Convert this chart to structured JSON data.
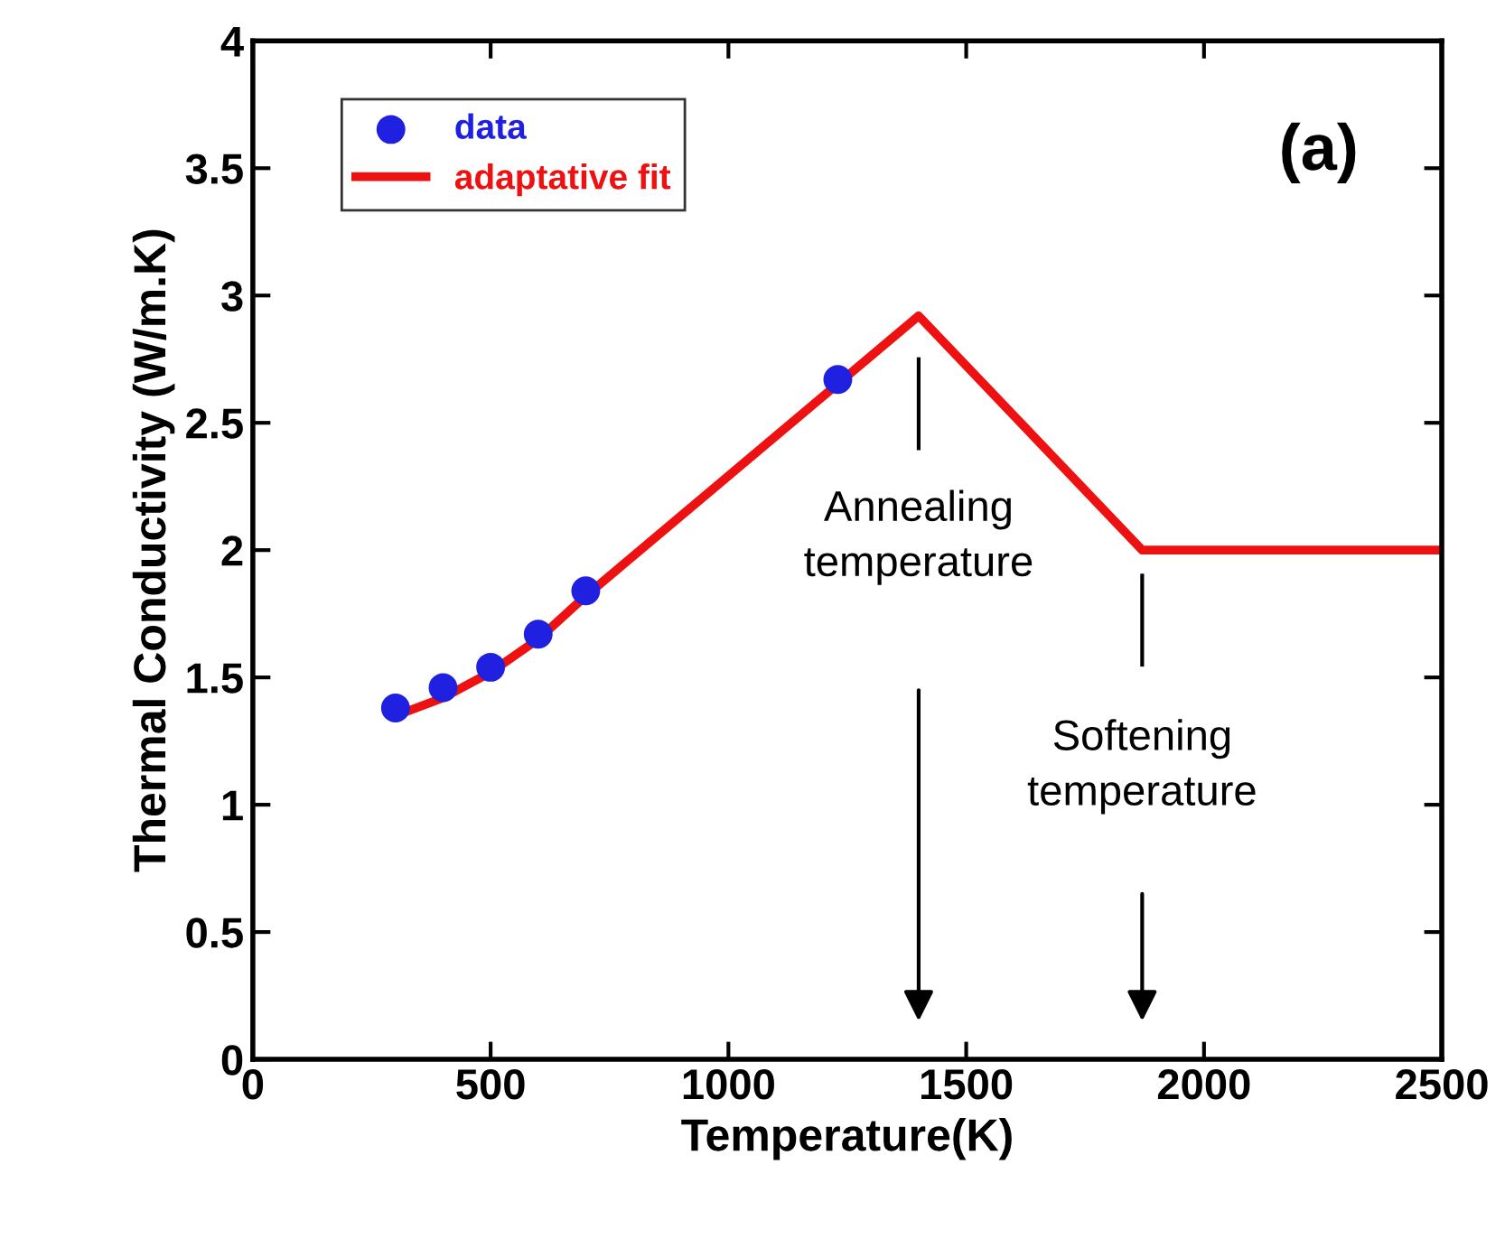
{
  "chart_data": {
    "type": "line",
    "xlabel": "Temperature(K)",
    "ylabel": "Thermal Conductivity (W/m.K)",
    "xlim": [
      0,
      2500
    ],
    "xticks": [
      0,
      500,
      1000,
      1500,
      2000,
      2500
    ],
    "ylim": [
      0,
      4
    ],
    "yticks": [
      0,
      0.5,
      1,
      1.5,
      2,
      2.5,
      3,
      3.5,
      4
    ],
    "series": [
      {
        "name": "data",
        "type": "scatter",
        "color": "#2020e0",
        "marker": "circle",
        "x": [
          300,
          400,
          500,
          600,
          700,
          1230
        ],
        "values": [
          1.38,
          1.46,
          1.54,
          1.67,
          1.84,
          2.67
        ]
      },
      {
        "name": "adaptative fit",
        "color": "#ee1111",
        "marker": "none",
        "line_style": "solid",
        "x": [
          300,
          400,
          500,
          600,
          700,
          1400,
          1870,
          2500
        ],
        "values": [
          1.35,
          1.42,
          1.52,
          1.65,
          1.82,
          2.92,
          2.0,
          2.0
        ]
      }
    ],
    "annotations": [
      "(a)"
    ],
    "ref_lines": [
      {
        "axis": "x",
        "value": 1400,
        "label": "Annealing\ntemperature",
        "color": "#000000"
      },
      {
        "axis": "x",
        "value": 1870,
        "label": "Softening\ntemperature",
        "color": "#000000"
      }
    ],
    "legend": "top left",
    "grid": false
  }
}
